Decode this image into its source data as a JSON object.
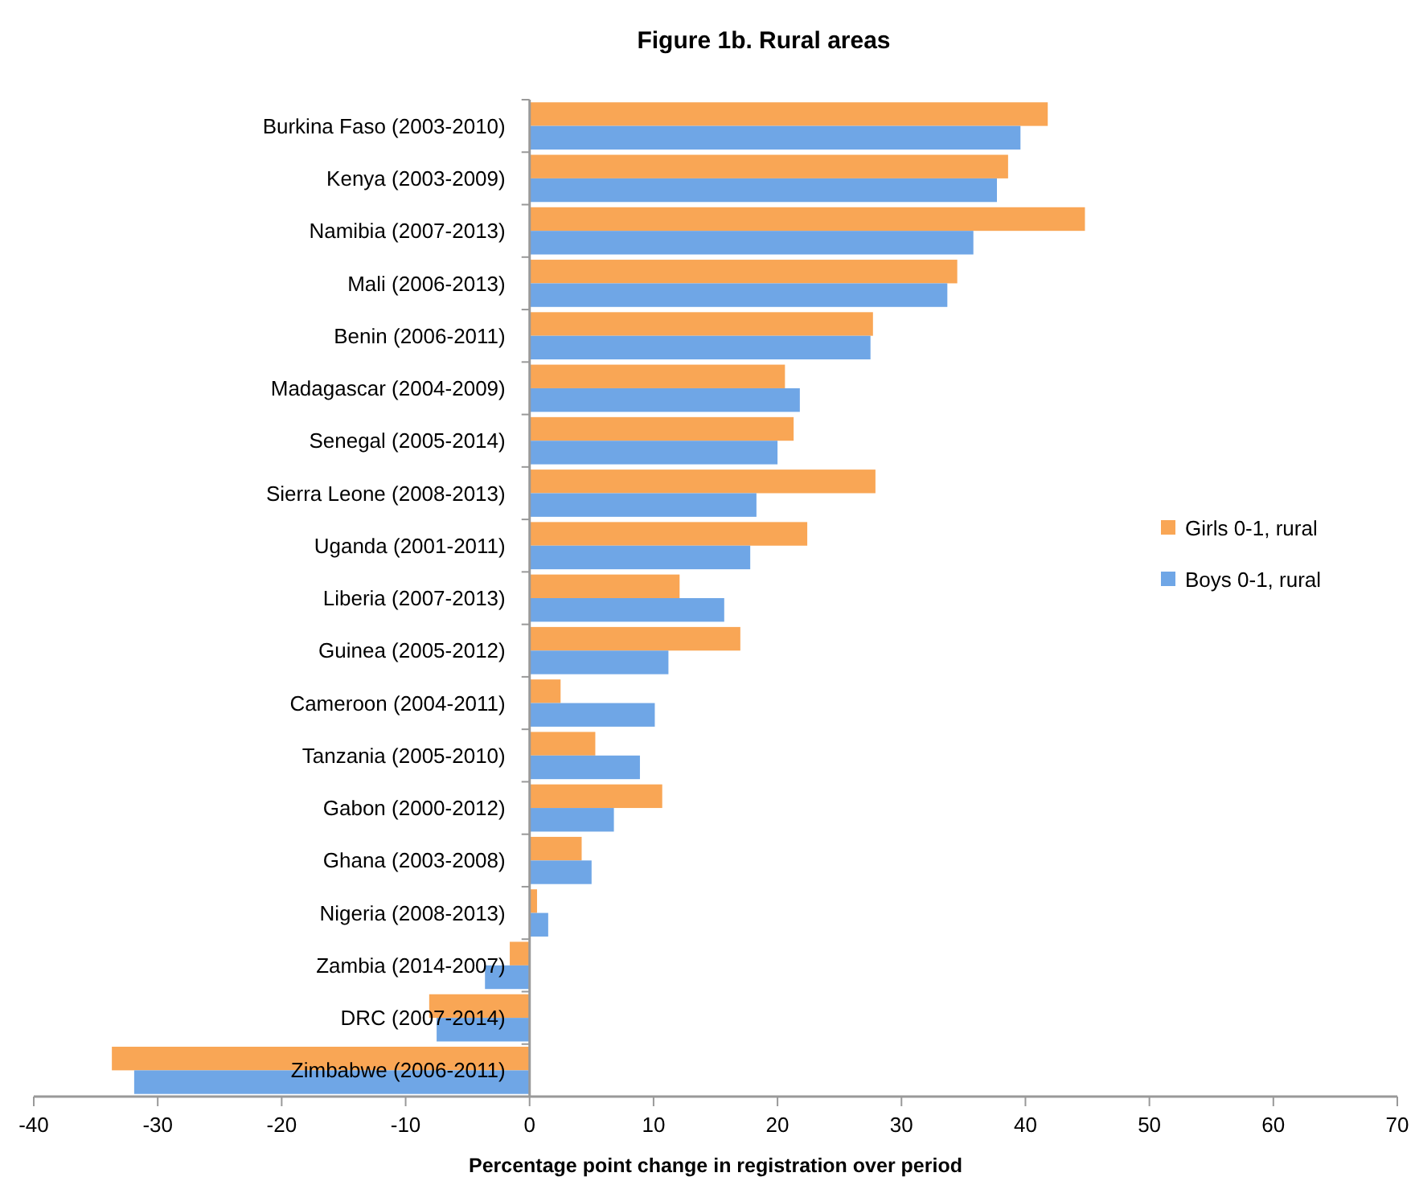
{
  "chart_data": {
    "type": "bar",
    "orientation": "horizontal",
    "title": "Figure 1b.  Rural areas",
    "xlabel": "Percentage point change in registration over period",
    "categories": [
      "Burkina Faso (2003-2010)",
      "Kenya (2003-2009)",
      "Namibia (2007-2013)",
      "Mali (2006-2013)",
      "Benin (2006-2011)",
      "Madagascar (2004-2009)",
      "Senegal (2005-2014)",
      "Sierra Leone (2008-2013)",
      "Uganda (2001-2011)",
      "Liberia (2007-2013)",
      "Guinea (2005-2012)",
      "Cameroon (2004-2011)",
      "Tanzania (2005-2010)",
      "Gabon (2000-2012)",
      "Ghana (2003-2008)",
      "Nigeria (2008-2013)",
      "Zambia (2014-2007)",
      "DRC (2007-2014)",
      "Zimbabwe (2006-2011)"
    ],
    "series": [
      {
        "name": "Girls 0-1, rural",
        "color": "#f9a655",
        "values": [
          41.8,
          38.6,
          44.8,
          34.5,
          27.7,
          20.6,
          21.3,
          27.9,
          22.4,
          12.1,
          17.0,
          2.5,
          5.3,
          10.7,
          4.2,
          0.6,
          -1.6,
          -8.1,
          -33.7
        ]
      },
      {
        "name": "Boys 0-1, rural",
        "color": "#6fa6e6",
        "values": [
          39.6,
          37.7,
          35.8,
          33.7,
          27.5,
          21.8,
          20.0,
          18.3,
          17.8,
          15.7,
          11.2,
          10.1,
          8.9,
          6.8,
          5.0,
          1.5,
          -3.6,
          -7.5,
          -31.9
        ]
      }
    ],
    "xlim": [
      -40,
      70
    ],
    "xticks": [
      -40,
      -30,
      -20,
      -10,
      0,
      10,
      20,
      30,
      40,
      50,
      60,
      70
    ],
    "grid": false,
    "legend": "right"
  }
}
